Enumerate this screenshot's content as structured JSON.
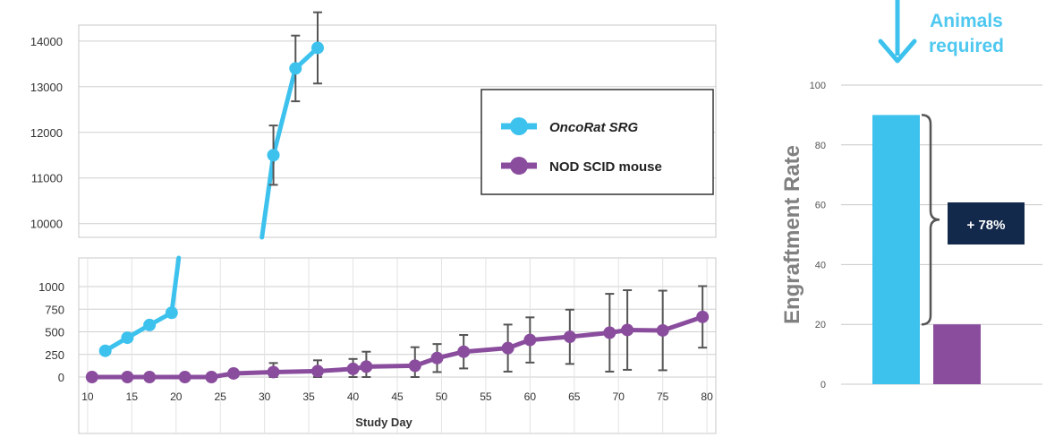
{
  "chart_data": [
    {
      "type": "line",
      "title": "",
      "xlabel": "Study Day",
      "ylabel": "",
      "x_ticks": [
        10,
        15,
        20,
        25,
        30,
        35,
        40,
        45,
        50,
        55,
        60,
        65,
        70,
        75,
        80
      ],
      "xlim": [
        9,
        81
      ],
      "axis_break": true,
      "upper_panel": {
        "ylim": [
          9700,
          14350
        ],
        "y_ticks": [
          10000,
          11000,
          12000,
          13000,
          14000
        ]
      },
      "lower_panel": {
        "ylim": [
          0,
          1250
        ],
        "y_ticks": [
          0,
          250,
          500,
          750,
          1000
        ]
      },
      "legend": {
        "position": "top-right"
      },
      "series": [
        {
          "name": "OncoRat SRG",
          "color": "#3DC2EE",
          "points": [
            {
              "x": 12,
              "y": 290,
              "err": 0
            },
            {
              "x": 14.5,
              "y": 435,
              "err": 0
            },
            {
              "x": 17,
              "y": 575,
              "err": 0
            },
            {
              "x": 19.5,
              "y": 710,
              "err": 0
            },
            {
              "x": 31,
              "y": 11500,
              "err": 650
            },
            {
              "x": 33.5,
              "y": 13400,
              "err": 720
            },
            {
              "x": 36,
              "y": 13850,
              "err": 780
            }
          ]
        },
        {
          "name": "NOD SCID mouse",
          "color": "#8A4D9E",
          "points": [
            {
              "x": 10.5,
              "y": 0,
              "err": 0
            },
            {
              "x": 14.5,
              "y": 0,
              "err": 0
            },
            {
              "x": 17,
              "y": 0,
              "err": 0
            },
            {
              "x": 21,
              "y": 0,
              "err": 0
            },
            {
              "x": 24,
              "y": 0,
              "err": 0
            },
            {
              "x": 26.5,
              "y": 40,
              "err": 0
            },
            {
              "x": 31,
              "y": 55,
              "err": 100
            },
            {
              "x": 36,
              "y": 65,
              "err": 120
            },
            {
              "x": 40,
              "y": 90,
              "err": 110
            },
            {
              "x": 41.5,
              "y": 115,
              "err": 165
            },
            {
              "x": 47,
              "y": 125,
              "err": 205
            },
            {
              "x": 49.5,
              "y": 210,
              "err": 155
            },
            {
              "x": 52.5,
              "y": 280,
              "err": 185
            },
            {
              "x": 57.5,
              "y": 320,
              "err": 260
            },
            {
              "x": 60,
              "y": 410,
              "err": 250
            },
            {
              "x": 64.5,
              "y": 445,
              "err": 300
            },
            {
              "x": 69,
              "y": 490,
              "err": 430
            },
            {
              "x": 71,
              "y": 520,
              "err": 440
            },
            {
              "x": 75,
              "y": 515,
              "err": 440
            },
            {
              "x": 79.5,
              "y": 665,
              "err": 340
            }
          ]
        }
      ]
    },
    {
      "type": "bar",
      "title": "",
      "xlabel": "",
      "ylabel": "Engraftment Rate",
      "ylim": [
        0,
        100
      ],
      "y_ticks": [
        0,
        20,
        40,
        60,
        80,
        100
      ],
      "grid": true,
      "categories": [
        "OncoRat SRG",
        "NOD SCID mouse"
      ],
      "values": [
        90,
        20
      ],
      "colors": [
        "#3DC2EE",
        "#8A4D9E"
      ],
      "annotation": "+ 78%",
      "callout": {
        "text_line1": "Animals",
        "text_line2": "required",
        "arrow": "down"
      }
    }
  ]
}
